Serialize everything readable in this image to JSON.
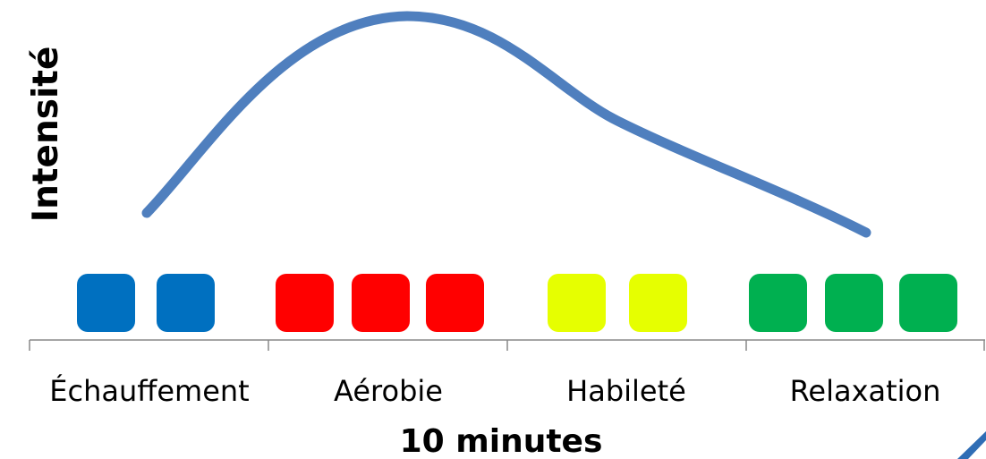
{
  "ylabel": "Intensité",
  "xlabel": "10 minutes",
  "colors": {
    "curve": "#4f7fbe",
    "axis": "#888888",
    "corner_mark": "#2f6db5"
  },
  "phases": [
    {
      "label": "Échauffement",
      "color": "#0070c0",
      "blocks": 2
    },
    {
      "label": "Aérobie",
      "color": "#ff0000",
      "blocks": 3
    },
    {
      "label": "Habileté",
      "color": "#e6ff00",
      "blocks": 2
    },
    {
      "label": "Relaxation",
      "color": "#00b050",
      "blocks": 3
    }
  ]
}
